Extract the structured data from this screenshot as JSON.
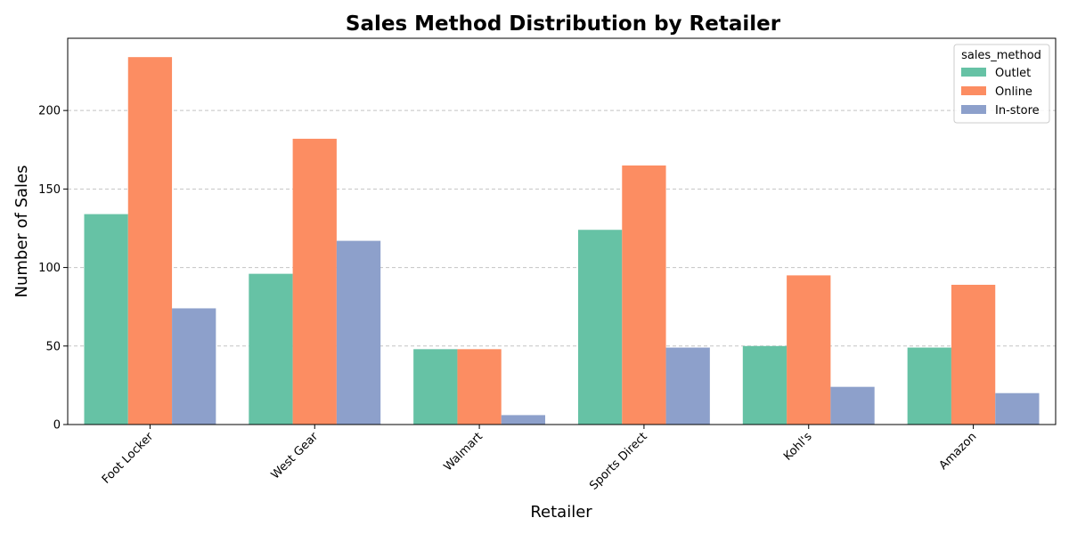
{
  "chart_data": {
    "type": "bar",
    "title": "Sales Method Distribution by Retailer",
    "xlabel": "Retailer",
    "ylabel": "Number of Sales",
    "categories": [
      "Foot Locker",
      "West Gear",
      "Walmart",
      "Sports Direct",
      "Kohl's",
      "Amazon"
    ],
    "series": [
      {
        "name": "Outlet",
        "values": [
          134,
          96,
          48,
          124,
          50,
          49
        ],
        "color": "#66c2a5"
      },
      {
        "name": "Online",
        "values": [
          234,
          182,
          48,
          165,
          95,
          89
        ],
        "color": "#fc8d62"
      },
      {
        "name": "In-store",
        "values": [
          74,
          117,
          6,
          49,
          24,
          20
        ],
        "color": "#8da0cb"
      }
    ],
    "ylim": [
      0,
      246
    ],
    "yticks": [
      0,
      50,
      100,
      150,
      200
    ],
    "grid": "y-dashed",
    "legend": {
      "title": "sales_method",
      "position": "top-right"
    }
  }
}
